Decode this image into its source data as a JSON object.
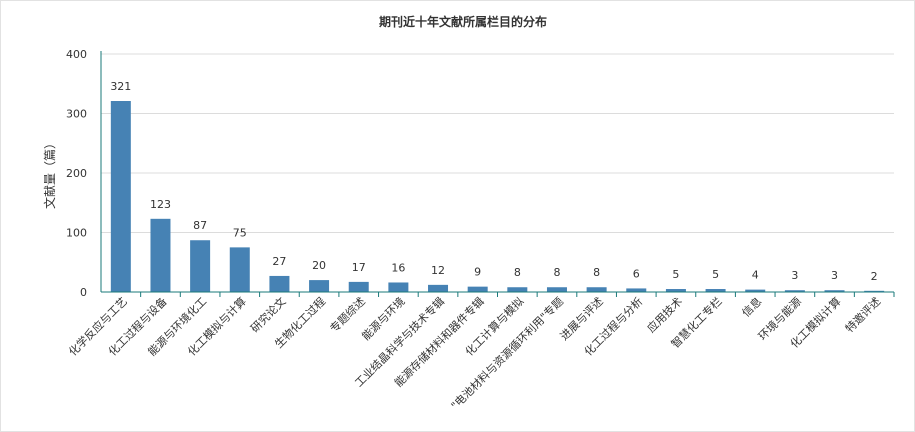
{
  "chart_data": {
    "type": "bar",
    "title": "期刊近十年文献所属栏目的分布",
    "xlabel": "",
    "ylabel": "文献量（篇）",
    "ylim": [
      0,
      400
    ],
    "yticks": [
      0,
      100,
      200,
      300,
      400
    ],
    "grid": true,
    "bar_color": "#4682b4",
    "categories": [
      "化学反应与工艺",
      "化工过程与设备",
      "能源与环境化工",
      "化工模拟与计算",
      "研究论文",
      "生物化工过程",
      "专题综述",
      "能源与环境",
      "工业结晶科学与技术专辑",
      "能源存储材料和器件专辑",
      "化工计算与模拟",
      "\"电池材料与资源循环利用\"专题",
      "进展与评述",
      "化工过程与分析",
      "应用技术",
      "智慧化工专栏",
      "信息",
      "环境与能源",
      "化工模拟计算",
      "特邀评述"
    ],
    "values": [
      321,
      123,
      87,
      75,
      27,
      20,
      17,
      16,
      12,
      9,
      8,
      8,
      8,
      6,
      5,
      5,
      4,
      3,
      3,
      2
    ]
  }
}
